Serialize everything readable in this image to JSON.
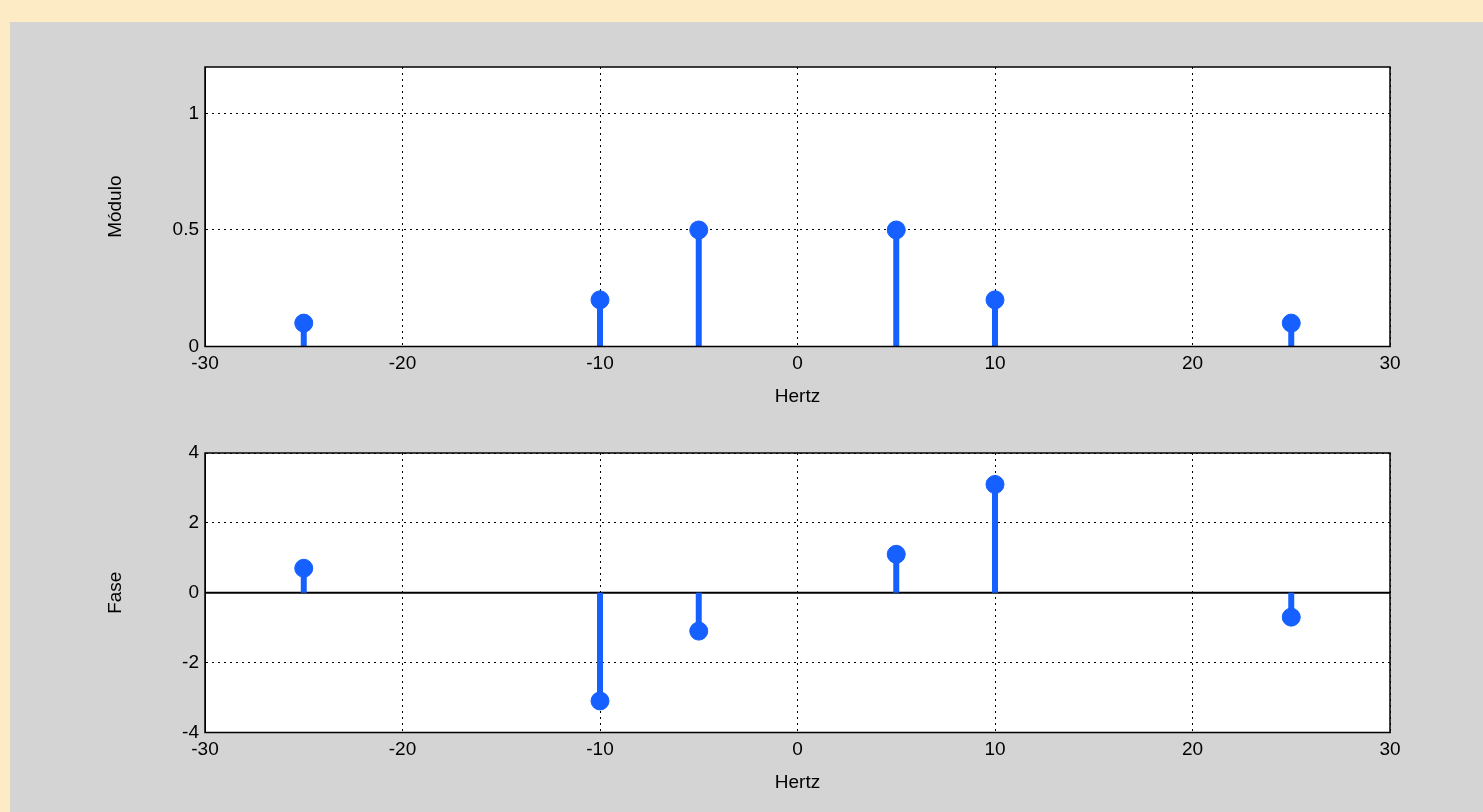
{
  "chart_data": [
    {
      "type": "lollipop",
      "xlabel": "Hertz",
      "ylabel": "Módulo",
      "x": [
        -25,
        -10,
        -5,
        5,
        10,
        25
      ],
      "values": [
        0.1,
        0.2,
        0.5,
        0.5,
        0.2,
        0.1
      ],
      "color": "#1560ff",
      "marker": "circle",
      "xlim": [
        -30,
        30
      ],
      "xticks": [
        -30,
        -20,
        -10,
        0,
        10,
        20,
        30
      ],
      "ylim": [
        0,
        1.2
      ],
      "yticks": [
        0,
        0.5,
        1
      ],
      "grid": true,
      "line_style": "dotted"
    },
    {
      "type": "lollipop",
      "xlabel": "Hertz",
      "ylabel": "Fase",
      "x": [
        -25,
        -10,
        -5,
        5,
        10,
        25
      ],
      "values": [
        0.7,
        -3.1,
        -1.1,
        1.1,
        3.1,
        -0.7
      ],
      "color": "#1560ff",
      "marker": "circle",
      "xlim": [
        -30,
        30
      ],
      "xticks": [
        -30,
        -20,
        -10,
        0,
        10,
        20,
        30
      ],
      "ylim": [
        -4,
        4
      ],
      "yticks": [
        -4,
        -2,
        0,
        2,
        4
      ],
      "grid": true,
      "line_style": "dotted",
      "ref_lines": [
        {
          "axis": "y",
          "value": 0,
          "color": "#000000"
        }
      ]
    }
  ]
}
